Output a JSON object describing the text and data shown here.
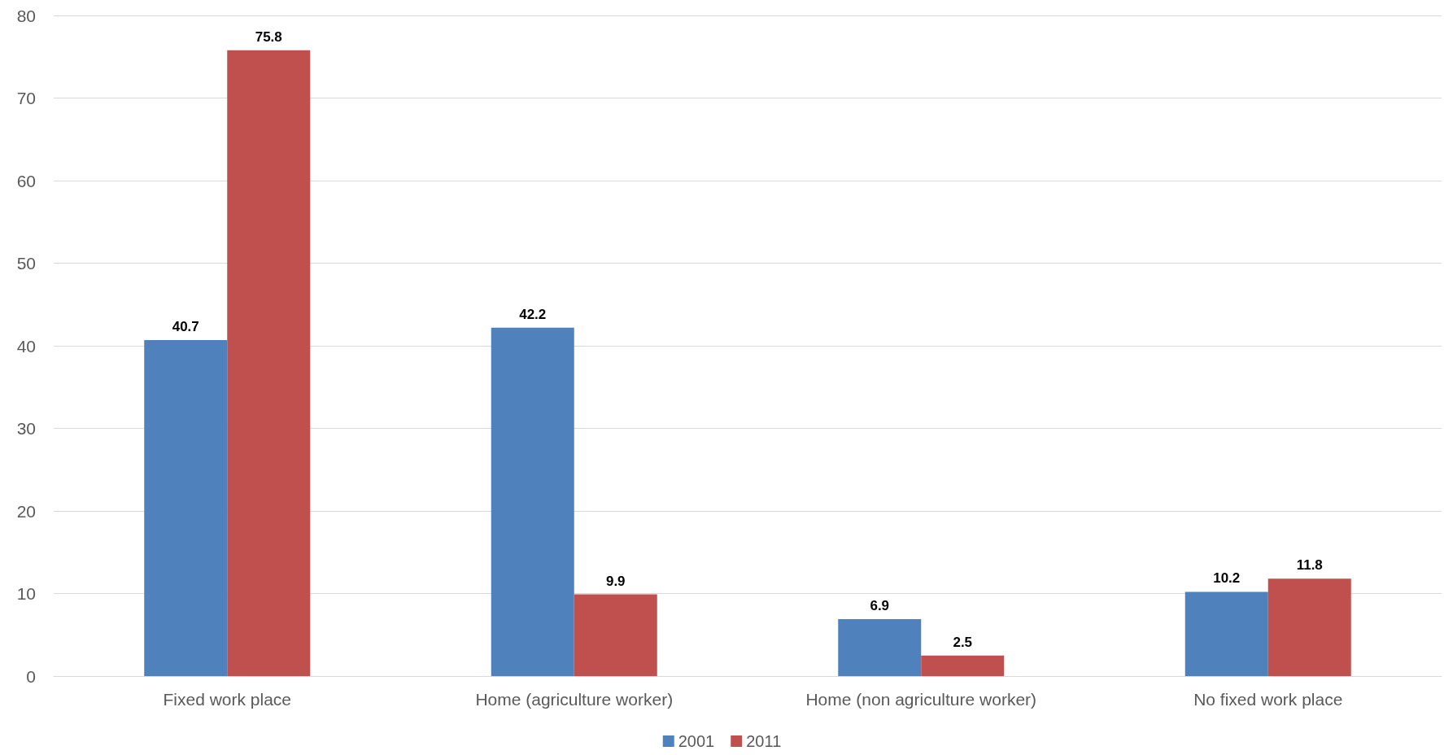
{
  "chart_data": {
    "type": "bar",
    "categories": [
      "Fixed work place",
      "Home (agriculture worker)",
      "Home (non agriculture worker)",
      "No fixed work place"
    ],
    "series": [
      {
        "name": "2001",
        "color": "#4f81bd",
        "values": [
          40.7,
          42.2,
          6.9,
          10.2
        ]
      },
      {
        "name": "2011",
        "color": "#c0504d",
        "values": [
          75.8,
          9.9,
          2.5,
          11.8
        ]
      }
    ],
    "ylim": [
      0,
      80
    ],
    "yticks": [
      0,
      10,
      20,
      30,
      40,
      50,
      60,
      70,
      80
    ],
    "grid": "y",
    "legend": "bottom",
    "data_labels": true
  }
}
